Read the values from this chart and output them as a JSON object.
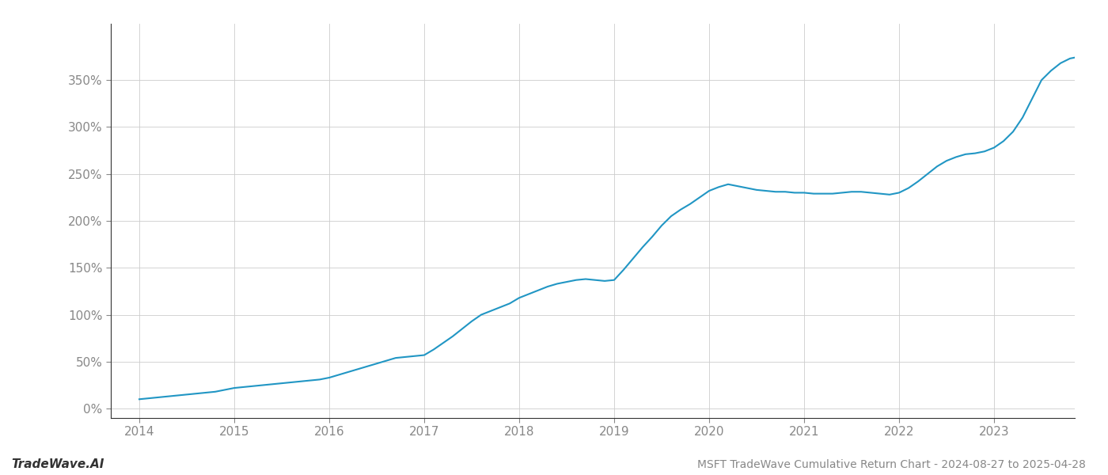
{
  "title": "MSFT TradeWave Cumulative Return Chart - 2024-08-27 to 2025-04-28",
  "watermark": "TradeWave.AI",
  "line_color": "#2196c4",
  "background_color": "#ffffff",
  "grid_color": "#cccccc",
  "years": [
    2014.0,
    2014.1,
    2014.2,
    2014.3,
    2014.4,
    2014.5,
    2014.6,
    2014.7,
    2014.8,
    2014.9,
    2015.0,
    2015.1,
    2015.2,
    2015.3,
    2015.4,
    2015.5,
    2015.6,
    2015.7,
    2015.8,
    2015.9,
    2016.0,
    2016.1,
    2016.2,
    2016.3,
    2016.4,
    2016.5,
    2016.6,
    2016.7,
    2016.8,
    2016.9,
    2017.0,
    2017.1,
    2017.2,
    2017.3,
    2017.4,
    2017.5,
    2017.6,
    2017.7,
    2017.8,
    2017.9,
    2018.0,
    2018.1,
    2018.2,
    2018.3,
    2018.4,
    2018.5,
    2018.6,
    2018.7,
    2018.8,
    2018.9,
    2019.0,
    2019.1,
    2019.2,
    2019.3,
    2019.4,
    2019.5,
    2019.6,
    2019.7,
    2019.8,
    2019.9,
    2020.0,
    2020.1,
    2020.2,
    2020.3,
    2020.4,
    2020.5,
    2020.6,
    2020.7,
    2020.8,
    2020.9,
    2021.0,
    2021.1,
    2021.2,
    2021.3,
    2021.4,
    2021.5,
    2021.6,
    2021.7,
    2021.8,
    2021.9,
    2022.0,
    2022.1,
    2022.2,
    2022.3,
    2022.4,
    2022.5,
    2022.6,
    2022.7,
    2022.8,
    2022.9,
    2023.0,
    2023.1,
    2023.2,
    2023.3,
    2023.4,
    2023.5,
    2023.6,
    2023.7,
    2023.8,
    2023.9
  ],
  "values": [
    10,
    11,
    12,
    13,
    14,
    15,
    16,
    17,
    18,
    20,
    22,
    23,
    24,
    25,
    26,
    27,
    28,
    29,
    30,
    31,
    33,
    36,
    39,
    42,
    45,
    48,
    51,
    54,
    55,
    56,
    57,
    63,
    70,
    77,
    85,
    93,
    100,
    104,
    108,
    112,
    118,
    122,
    126,
    130,
    133,
    135,
    137,
    138,
    137,
    136,
    137,
    148,
    160,
    172,
    183,
    195,
    205,
    212,
    218,
    225,
    232,
    236,
    239,
    237,
    235,
    233,
    232,
    231,
    231,
    230,
    230,
    229,
    229,
    229,
    230,
    231,
    231,
    230,
    229,
    228,
    230,
    235,
    242,
    250,
    258,
    264,
    268,
    271,
    272,
    274,
    278,
    285,
    295,
    310,
    330,
    350,
    360,
    368,
    373,
    375
  ],
  "xlim": [
    2013.7,
    2023.85
  ],
  "ylim": [
    -10,
    410
  ],
  "yticks": [
    0,
    50,
    100,
    150,
    200,
    250,
    300,
    350
  ],
  "xticks": [
    2014,
    2015,
    2016,
    2017,
    2018,
    2019,
    2020,
    2021,
    2022,
    2023
  ],
  "line_width": 1.5,
  "figsize": [
    14.0,
    6.0
  ],
  "dpi": 100,
  "title_fontsize": 10,
  "watermark_fontsize": 11,
  "tick_fontsize": 11,
  "spine_color": "#333333",
  "tick_color": "#888888",
  "label_color": "#888888"
}
